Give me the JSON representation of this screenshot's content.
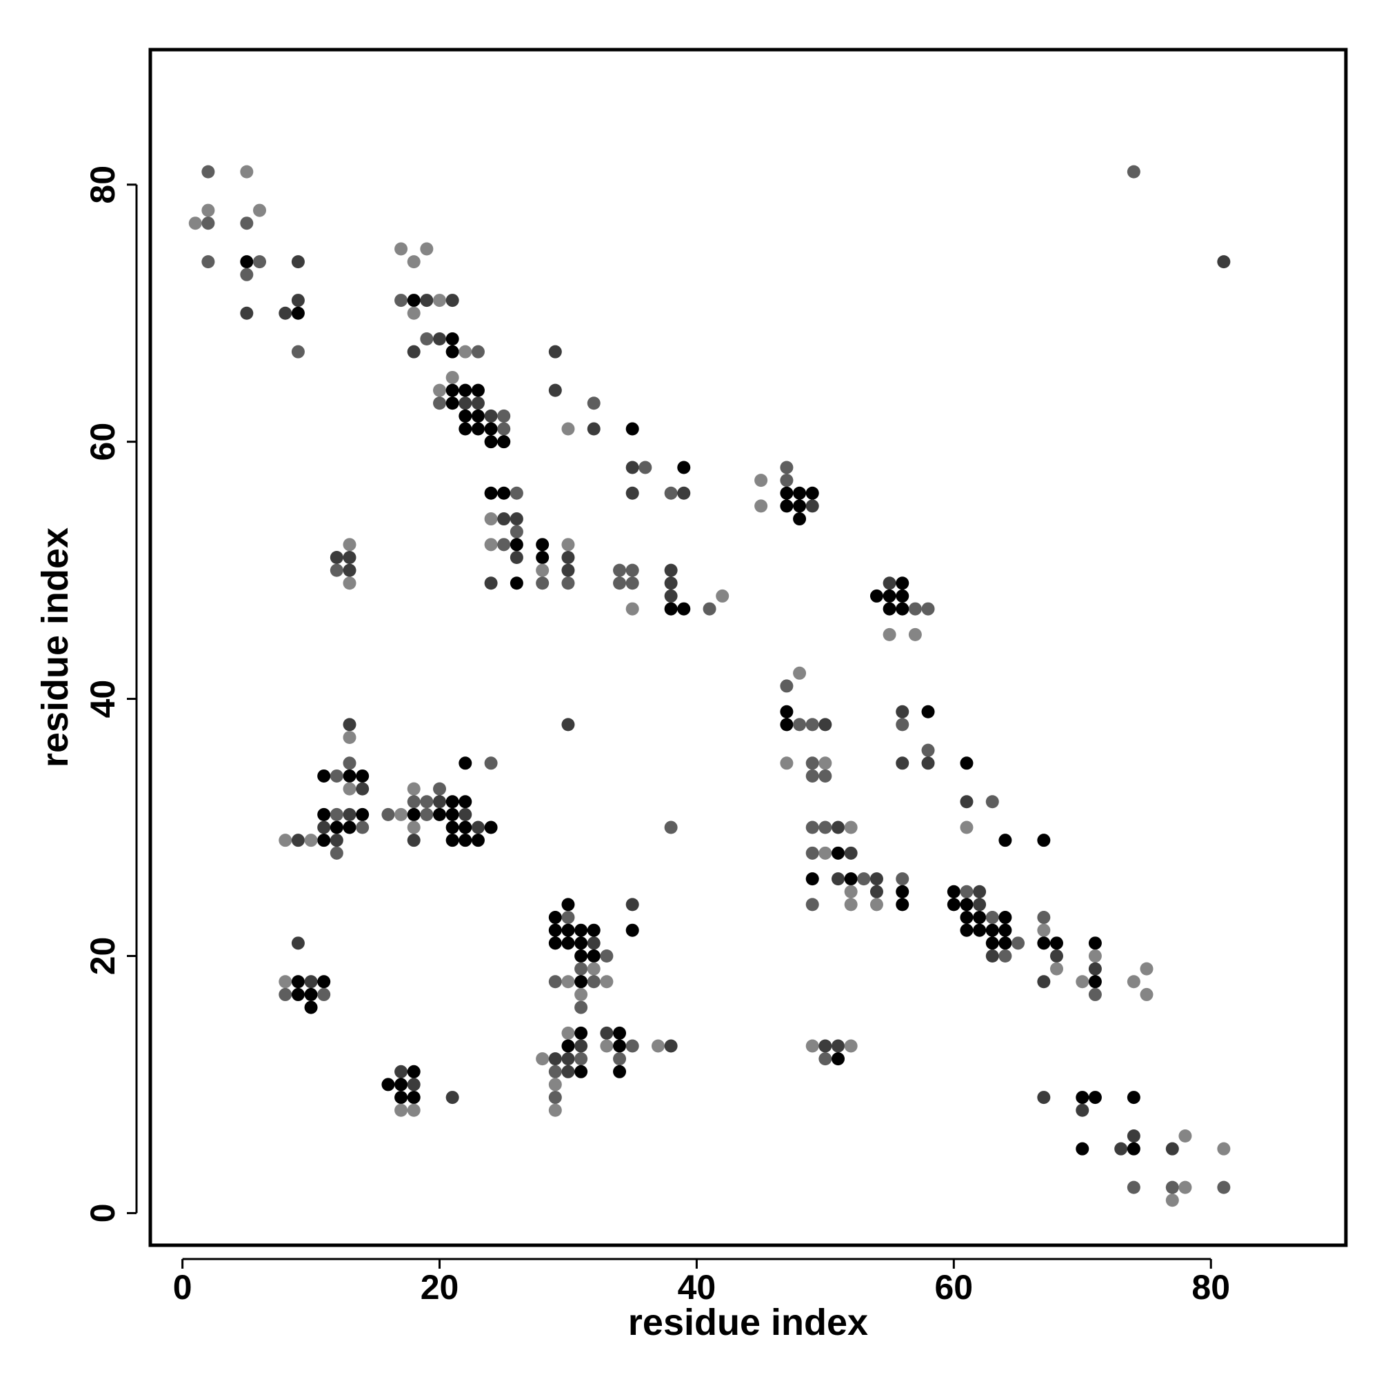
{
  "chart_data": {
    "type": "scatter",
    "title": "",
    "xlabel": "residue index",
    "ylabel": "residue index",
    "xlim": [
      -2.5,
      90.5
    ],
    "ylim": [
      -2.5,
      90.5
    ],
    "xticks": [
      0,
      20,
      40,
      60,
      80
    ],
    "yticks": [
      0,
      20,
      40,
      60,
      80
    ],
    "grid": false,
    "legend": "none",
    "color_note": "point shade encodes contact strength: 1 = black, 2 = dark gray, 3 = mid gray, 4 = light gray",
    "shade_colors": [
      "#000000",
      "#000000",
      "#3c3c3c",
      "#5e5e5e",
      "#858585"
    ],
    "points": [
      [
        1,
        77,
        4
      ],
      [
        2,
        81,
        3
      ],
      [
        2,
        78,
        4
      ],
      [
        2,
        77,
        3
      ],
      [
        2,
        74,
        3
      ],
      [
        5,
        81,
        4
      ],
      [
        5,
        77,
        3
      ],
      [
        5,
        74,
        1
      ],
      [
        5,
        73,
        3
      ],
      [
        5,
        70,
        2
      ],
      [
        6,
        78,
        4
      ],
      [
        6,
        74,
        3
      ],
      [
        8,
        70,
        2
      ],
      [
        9,
        74,
        2
      ],
      [
        9,
        71,
        2
      ],
      [
        9,
        70,
        1
      ],
      [
        9,
        67,
        3
      ],
      [
        17,
        75,
        4
      ],
      [
        17,
        71,
        3
      ],
      [
        18,
        74,
        4
      ],
      [
        18,
        71,
        1
      ],
      [
        18,
        70,
        4
      ],
      [
        18,
        67,
        2
      ],
      [
        19,
        75,
        4
      ],
      [
        19,
        71,
        2
      ],
      [
        19,
        68,
        3
      ],
      [
        20,
        71,
        4
      ],
      [
        20,
        68,
        2
      ],
      [
        21,
        71,
        2
      ],
      [
        21,
        68,
        1
      ],
      [
        21,
        67,
        1
      ],
      [
        20,
        64,
        4
      ],
      [
        20,
        63,
        3
      ],
      [
        21,
        65,
        4
      ],
      [
        21,
        64,
        1
      ],
      [
        21,
        63,
        1
      ],
      [
        22,
        67,
        4
      ],
      [
        22,
        64,
        1
      ],
      [
        22,
        63,
        2
      ],
      [
        22,
        62,
        1
      ],
      [
        22,
        61,
        1
      ],
      [
        23,
        67,
        3
      ],
      [
        23,
        64,
        1
      ],
      [
        23,
        63,
        2
      ],
      [
        23,
        62,
        1
      ],
      [
        23,
        61,
        1
      ],
      [
        24,
        62,
        2
      ],
      [
        24,
        61,
        1
      ],
      [
        24,
        60,
        1
      ],
      [
        25,
        62,
        3
      ],
      [
        25,
        61,
        3
      ],
      [
        25,
        60,
        1
      ],
      [
        29,
        67,
        2
      ],
      [
        29,
        64,
        2
      ],
      [
        30,
        61,
        4
      ],
      [
        32,
        63,
        3
      ],
      [
        32,
        61,
        2
      ],
      [
        35,
        61,
        1
      ],
      [
        35,
        58,
        2
      ],
      [
        35,
        56,
        2
      ],
      [
        36,
        58,
        3
      ],
      [
        38,
        56,
        3
      ],
      [
        39,
        58,
        1
      ],
      [
        39,
        56,
        2
      ],
      [
        24,
        56,
        1
      ],
      [
        24,
        54,
        4
      ],
      [
        24,
        52,
        4
      ],
      [
        24,
        49,
        2
      ],
      [
        25,
        56,
        1
      ],
      [
        25,
        54,
        2
      ],
      [
        25,
        52,
        3
      ],
      [
        26,
        56,
        3
      ],
      [
        26,
        54,
        2
      ],
      [
        26,
        53,
        3
      ],
      [
        26,
        52,
        1
      ],
      [
        26,
        51,
        2
      ],
      [
        26,
        49,
        1
      ],
      [
        28,
        52,
        1
      ],
      [
        28,
        51,
        1
      ],
      [
        28,
        50,
        4
      ],
      [
        28,
        49,
        3
      ],
      [
        30,
        52,
        4
      ],
      [
        30,
        51,
        2
      ],
      [
        30,
        50,
        2
      ],
      [
        30,
        49,
        3
      ],
      [
        34,
        50,
        3
      ],
      [
        34,
        49,
        3
      ],
      [
        35,
        50,
        3
      ],
      [
        35,
        49,
        3
      ],
      [
        35,
        47,
        4
      ],
      [
        38,
        50,
        2
      ],
      [
        38,
        49,
        2
      ],
      [
        38,
        48,
        2
      ],
      [
        38,
        47,
        1
      ],
      [
        39,
        47,
        1
      ],
      [
        41,
        47,
        3
      ],
      [
        42,
        48,
        4
      ],
      [
        12,
        51,
        2
      ],
      [
        12,
        50,
        3
      ],
      [
        13,
        52,
        4
      ],
      [
        13,
        51,
        2
      ],
      [
        13,
        50,
        2
      ],
      [
        13,
        49,
        4
      ],
      [
        45,
        57,
        4
      ],
      [
        45,
        55,
        4
      ],
      [
        47,
        58,
        3
      ],
      [
        47,
        57,
        3
      ],
      [
        47,
        56,
        1
      ],
      [
        47,
        55,
        1
      ],
      [
        48,
        56,
        1
      ],
      [
        48,
        55,
        1
      ],
      [
        48,
        54,
        1
      ],
      [
        49,
        56,
        1
      ],
      [
        49,
        55,
        2
      ],
      [
        54,
        48,
        1
      ],
      [
        55,
        49,
        2
      ],
      [
        55,
        48,
        1
      ],
      [
        55,
        47,
        1
      ],
      [
        55,
        45,
        4
      ],
      [
        56,
        49,
        1
      ],
      [
        56,
        48,
        1
      ],
      [
        56,
        47,
        1
      ],
      [
        57,
        47,
        3
      ],
      [
        57,
        45,
        4
      ],
      [
        58,
        47,
        3
      ],
      [
        47,
        41,
        3
      ],
      [
        48,
        42,
        4
      ],
      [
        47,
        39,
        1
      ],
      [
        47,
        38,
        1
      ],
      [
        47,
        35,
        4
      ],
      [
        48,
        38,
        3
      ],
      [
        49,
        38,
        3
      ],
      [
        49,
        35,
        3
      ],
      [
        49,
        34,
        3
      ],
      [
        50,
        38,
        2
      ],
      [
        50,
        35,
        4
      ],
      [
        50,
        34,
        3
      ],
      [
        56,
        39,
        2
      ],
      [
        56,
        38,
        3
      ],
      [
        56,
        35,
        2
      ],
      [
        58,
        39,
        1
      ],
      [
        58,
        36,
        3
      ],
      [
        58,
        35,
        2
      ],
      [
        30,
        38,
        2
      ],
      [
        13,
        38,
        2
      ],
      [
        13,
        37,
        4
      ],
      [
        13,
        35,
        3
      ],
      [
        13,
        34,
        1
      ],
      [
        13,
        33,
        4
      ],
      [
        13,
        31,
        2
      ],
      [
        13,
        30,
        1
      ],
      [
        11,
        34,
        1
      ],
      [
        12,
        34,
        3
      ],
      [
        14,
        34,
        1
      ],
      [
        14,
        33,
        2
      ],
      [
        14,
        31,
        1
      ],
      [
        14,
        30,
        3
      ],
      [
        11,
        31,
        1
      ],
      [
        11,
        30,
        2
      ],
      [
        11,
        29,
        1
      ],
      [
        12,
        31,
        3
      ],
      [
        12,
        30,
        1
      ],
      [
        12,
        29,
        2
      ],
      [
        12,
        28,
        3
      ],
      [
        8,
        29,
        4
      ],
      [
        9,
        29,
        2
      ],
      [
        10,
        29,
        4
      ],
      [
        16,
        31,
        3
      ],
      [
        17,
        31,
        4
      ],
      [
        18,
        33,
        4
      ],
      [
        18,
        32,
        3
      ],
      [
        18,
        31,
        1
      ],
      [
        18,
        30,
        4
      ],
      [
        18,
        29,
        2
      ],
      [
        19,
        32,
        3
      ],
      [
        19,
        31,
        3
      ],
      [
        20,
        33,
        3
      ],
      [
        20,
        32,
        2
      ],
      [
        20,
        31,
        1
      ],
      [
        21,
        32,
        1
      ],
      [
        21,
        31,
        1
      ],
      [
        21,
        30,
        1
      ],
      [
        21,
        29,
        1
      ],
      [
        22,
        35,
        1
      ],
      [
        22,
        32,
        1
      ],
      [
        22,
        31,
        2
      ],
      [
        22,
        30,
        1
      ],
      [
        22,
        29,
        1
      ],
      [
        23,
        30,
        2
      ],
      [
        23,
        29,
        1
      ],
      [
        24,
        35,
        3
      ],
      [
        24,
        30,
        1
      ],
      [
        38,
        30,
        3
      ],
      [
        49,
        30,
        3
      ],
      [
        49,
        28,
        3
      ],
      [
        49,
        26,
        1
      ],
      [
        49,
        24,
        3
      ],
      [
        50,
        30,
        3
      ],
      [
        50,
        28,
        4
      ],
      [
        51,
        30,
        2
      ],
      [
        51,
        28,
        1
      ],
      [
        51,
        26,
        2
      ],
      [
        52,
        30,
        4
      ],
      [
        52,
        28,
        2
      ],
      [
        52,
        26,
        1
      ],
      [
        52,
        25,
        4
      ],
      [
        52,
        24,
        4
      ],
      [
        53,
        26,
        3
      ],
      [
        54,
        26,
        2
      ],
      [
        54,
        25,
        2
      ],
      [
        54,
        24,
        4
      ],
      [
        56,
        26,
        3
      ],
      [
        56,
        25,
        1
      ],
      [
        56,
        24,
        1
      ],
      [
        60,
        25,
        1
      ],
      [
        60,
        24,
        1
      ],
      [
        61,
        35,
        1
      ],
      [
        61,
        32,
        2
      ],
      [
        61,
        30,
        4
      ],
      [
        61,
        25,
        3
      ],
      [
        61,
        24,
        1
      ],
      [
        61,
        23,
        1
      ],
      [
        61,
        22,
        1
      ],
      [
        62,
        25,
        2
      ],
      [
        62,
        24,
        2
      ],
      [
        62,
        23,
        1
      ],
      [
        62,
        22,
        1
      ],
      [
        63,
        32,
        3
      ],
      [
        63,
        23,
        3
      ],
      [
        63,
        22,
        1
      ],
      [
        63,
        21,
        1
      ],
      [
        63,
        20,
        2
      ],
      [
        64,
        29,
        1
      ],
      [
        64,
        23,
        1
      ],
      [
        64,
        22,
        1
      ],
      [
        64,
        21,
        1
      ],
      [
        64,
        20,
        3
      ],
      [
        65,
        21,
        3
      ],
      [
        67,
        29,
        1
      ],
      [
        67,
        23,
        3
      ],
      [
        67,
        22,
        4
      ],
      [
        67,
        21,
        1
      ],
      [
        67,
        18,
        2
      ],
      [
        68,
        21,
        1
      ],
      [
        68,
        20,
        2
      ],
      [
        68,
        19,
        4
      ],
      [
        70,
        18,
        4
      ],
      [
        71,
        21,
        1
      ],
      [
        71,
        20,
        4
      ],
      [
        71,
        19,
        2
      ],
      [
        71,
        18,
        1
      ],
      [
        71,
        17,
        3
      ],
      [
        74,
        18,
        4
      ],
      [
        75,
        19,
        4
      ],
      [
        75,
        17,
        4
      ],
      [
        67,
        9,
        2
      ],
      [
        70,
        9,
        1
      ],
      [
        70,
        8,
        2
      ],
      [
        70,
        5,
        1
      ],
      [
        71,
        9,
        1
      ],
      [
        73,
        5,
        2
      ],
      [
        74,
        9,
        1
      ],
      [
        74,
        6,
        2
      ],
      [
        74,
        5,
        1
      ],
      [
        74,
        2,
        3
      ],
      [
        77,
        5,
        2
      ],
      [
        77,
        2,
        3
      ],
      [
        77,
        1,
        4
      ],
      [
        78,
        6,
        4
      ],
      [
        78,
        2,
        4
      ],
      [
        81,
        5,
        4
      ],
      [
        81,
        2,
        3
      ],
      [
        74,
        81,
        3
      ],
      [
        81,
        74,
        2
      ],
      [
        9,
        21,
        2
      ],
      [
        8,
        18,
        4
      ],
      [
        8,
        17,
        3
      ],
      [
        9,
        18,
        1
      ],
      [
        9,
        17,
        1
      ],
      [
        10,
        18,
        2
      ],
      [
        10,
        17,
        1
      ],
      [
        10,
        16,
        1
      ],
      [
        11,
        18,
        1
      ],
      [
        11,
        17,
        3
      ],
      [
        29,
        23,
        1
      ],
      [
        29,
        22,
        1
      ],
      [
        29,
        21,
        1
      ],
      [
        29,
        18,
        3
      ],
      [
        30,
        24,
        1
      ],
      [
        30,
        23,
        3
      ],
      [
        30,
        22,
        1
      ],
      [
        30,
        21,
        1
      ],
      [
        30,
        18,
        4
      ],
      [
        31,
        22,
        1
      ],
      [
        31,
        21,
        1
      ],
      [
        31,
        20,
        1
      ],
      [
        31,
        19,
        3
      ],
      [
        31,
        18,
        1
      ],
      [
        31,
        17,
        4
      ],
      [
        31,
        16,
        3
      ],
      [
        32,
        22,
        1
      ],
      [
        32,
        21,
        2
      ],
      [
        32,
        20,
        1
      ],
      [
        32,
        19,
        4
      ],
      [
        32,
        18,
        3
      ],
      [
        33,
        20,
        3
      ],
      [
        33,
        18,
        4
      ],
      [
        35,
        24,
        2
      ],
      [
        35,
        22,
        1
      ],
      [
        28,
        12,
        4
      ],
      [
        29,
        12,
        2
      ],
      [
        29,
        11,
        3
      ],
      [
        29,
        10,
        4
      ],
      [
        29,
        9,
        3
      ],
      [
        29,
        8,
        4
      ],
      [
        30,
        14,
        4
      ],
      [
        30,
        13,
        1
      ],
      [
        30,
        12,
        2
      ],
      [
        30,
        11,
        2
      ],
      [
        31,
        14,
        1
      ],
      [
        31,
        13,
        2
      ],
      [
        31,
        12,
        3
      ],
      [
        31,
        11,
        1
      ],
      [
        33,
        14,
        2
      ],
      [
        33,
        13,
        4
      ],
      [
        34,
        14,
        1
      ],
      [
        34,
        13,
        1
      ],
      [
        34,
        12,
        3
      ],
      [
        34,
        11,
        1
      ],
      [
        35,
        13,
        3
      ],
      [
        37,
        13,
        4
      ],
      [
        38,
        13,
        2
      ],
      [
        16,
        10,
        1
      ],
      [
        17,
        11,
        2
      ],
      [
        17,
        10,
        1
      ],
      [
        17,
        9,
        1
      ],
      [
        17,
        8,
        4
      ],
      [
        18,
        11,
        1
      ],
      [
        18,
        10,
        2
      ],
      [
        18,
        9,
        1
      ],
      [
        18,
        8,
        4
      ],
      [
        21,
        9,
        2
      ],
      [
        49,
        13,
        4
      ],
      [
        50,
        13,
        2
      ],
      [
        50,
        12,
        3
      ],
      [
        51,
        13,
        2
      ],
      [
        51,
        12,
        1
      ],
      [
        52,
        13,
        4
      ]
    ]
  }
}
